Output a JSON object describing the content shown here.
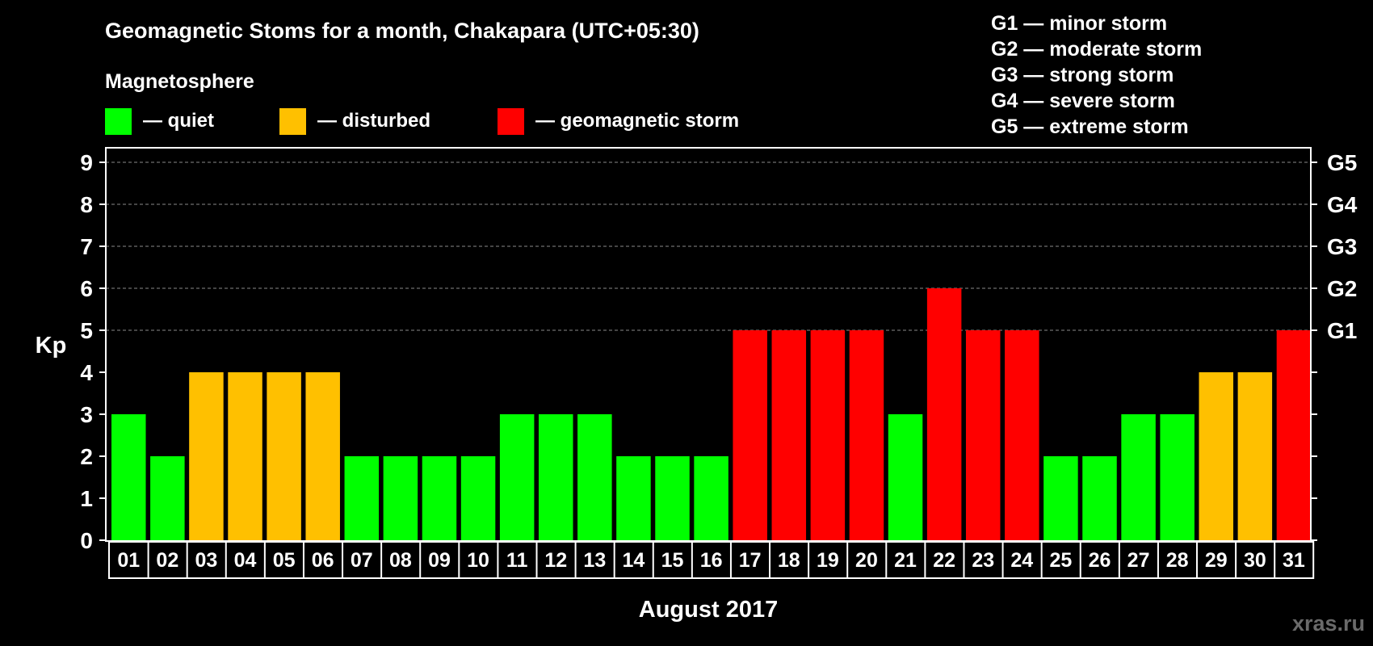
{
  "header": {
    "title": "Geomagnetic Stoms for a month, Chakapara (UTC+05:30)",
    "magnetosphere_label": "Magnetosphere",
    "legend": [
      {
        "key": "quiet",
        "label": "— quiet",
        "color": "#00ff00"
      },
      {
        "key": "disturbed",
        "label": "— disturbed",
        "color": "#ffc000"
      },
      {
        "key": "storm",
        "label": "— geomagnetic storm",
        "color": "#ff0000"
      }
    ],
    "storm_scale": [
      "G1 — minor storm",
      "G2 — moderate storm",
      "G3 — strong storm",
      "G4 — severe storm",
      "G5 — extreme storm"
    ]
  },
  "watermark": "xras.ru",
  "chart_data": {
    "type": "bar",
    "title": "Geomagnetic Stoms for a month, Chakapara (UTC+05:30)",
    "xlabel": "August 2017",
    "ylabel": "Kp",
    "ylim": [
      0,
      9
    ],
    "yticks": [
      0,
      1,
      2,
      3,
      4,
      5,
      6,
      7,
      8,
      9
    ],
    "right_axis_labels": [
      {
        "kp": 5,
        "label": "G1"
      },
      {
        "kp": 6,
        "label": "G2"
      },
      {
        "kp": 7,
        "label": "G3"
      },
      {
        "kp": 8,
        "label": "G4"
      },
      {
        "kp": 9,
        "label": "G5"
      }
    ],
    "grid": "dashed horizontal at Kp 5-9",
    "categories": [
      "01",
      "02",
      "03",
      "04",
      "05",
      "06",
      "07",
      "08",
      "09",
      "10",
      "11",
      "12",
      "13",
      "14",
      "15",
      "16",
      "17",
      "18",
      "19",
      "20",
      "21",
      "22",
      "23",
      "24",
      "25",
      "26",
      "27",
      "28",
      "29",
      "30",
      "31"
    ],
    "values": [
      3,
      2,
      4,
      4,
      4,
      4,
      2,
      2,
      2,
      2,
      3,
      3,
      3,
      2,
      2,
      2,
      5,
      5,
      5,
      5,
      3,
      6,
      5,
      5,
      2,
      2,
      3,
      3,
      4,
      4,
      5
    ],
    "colors": {
      "quiet": "#00ff00",
      "disturbed": "#ffc000",
      "storm": "#ff0000"
    }
  }
}
